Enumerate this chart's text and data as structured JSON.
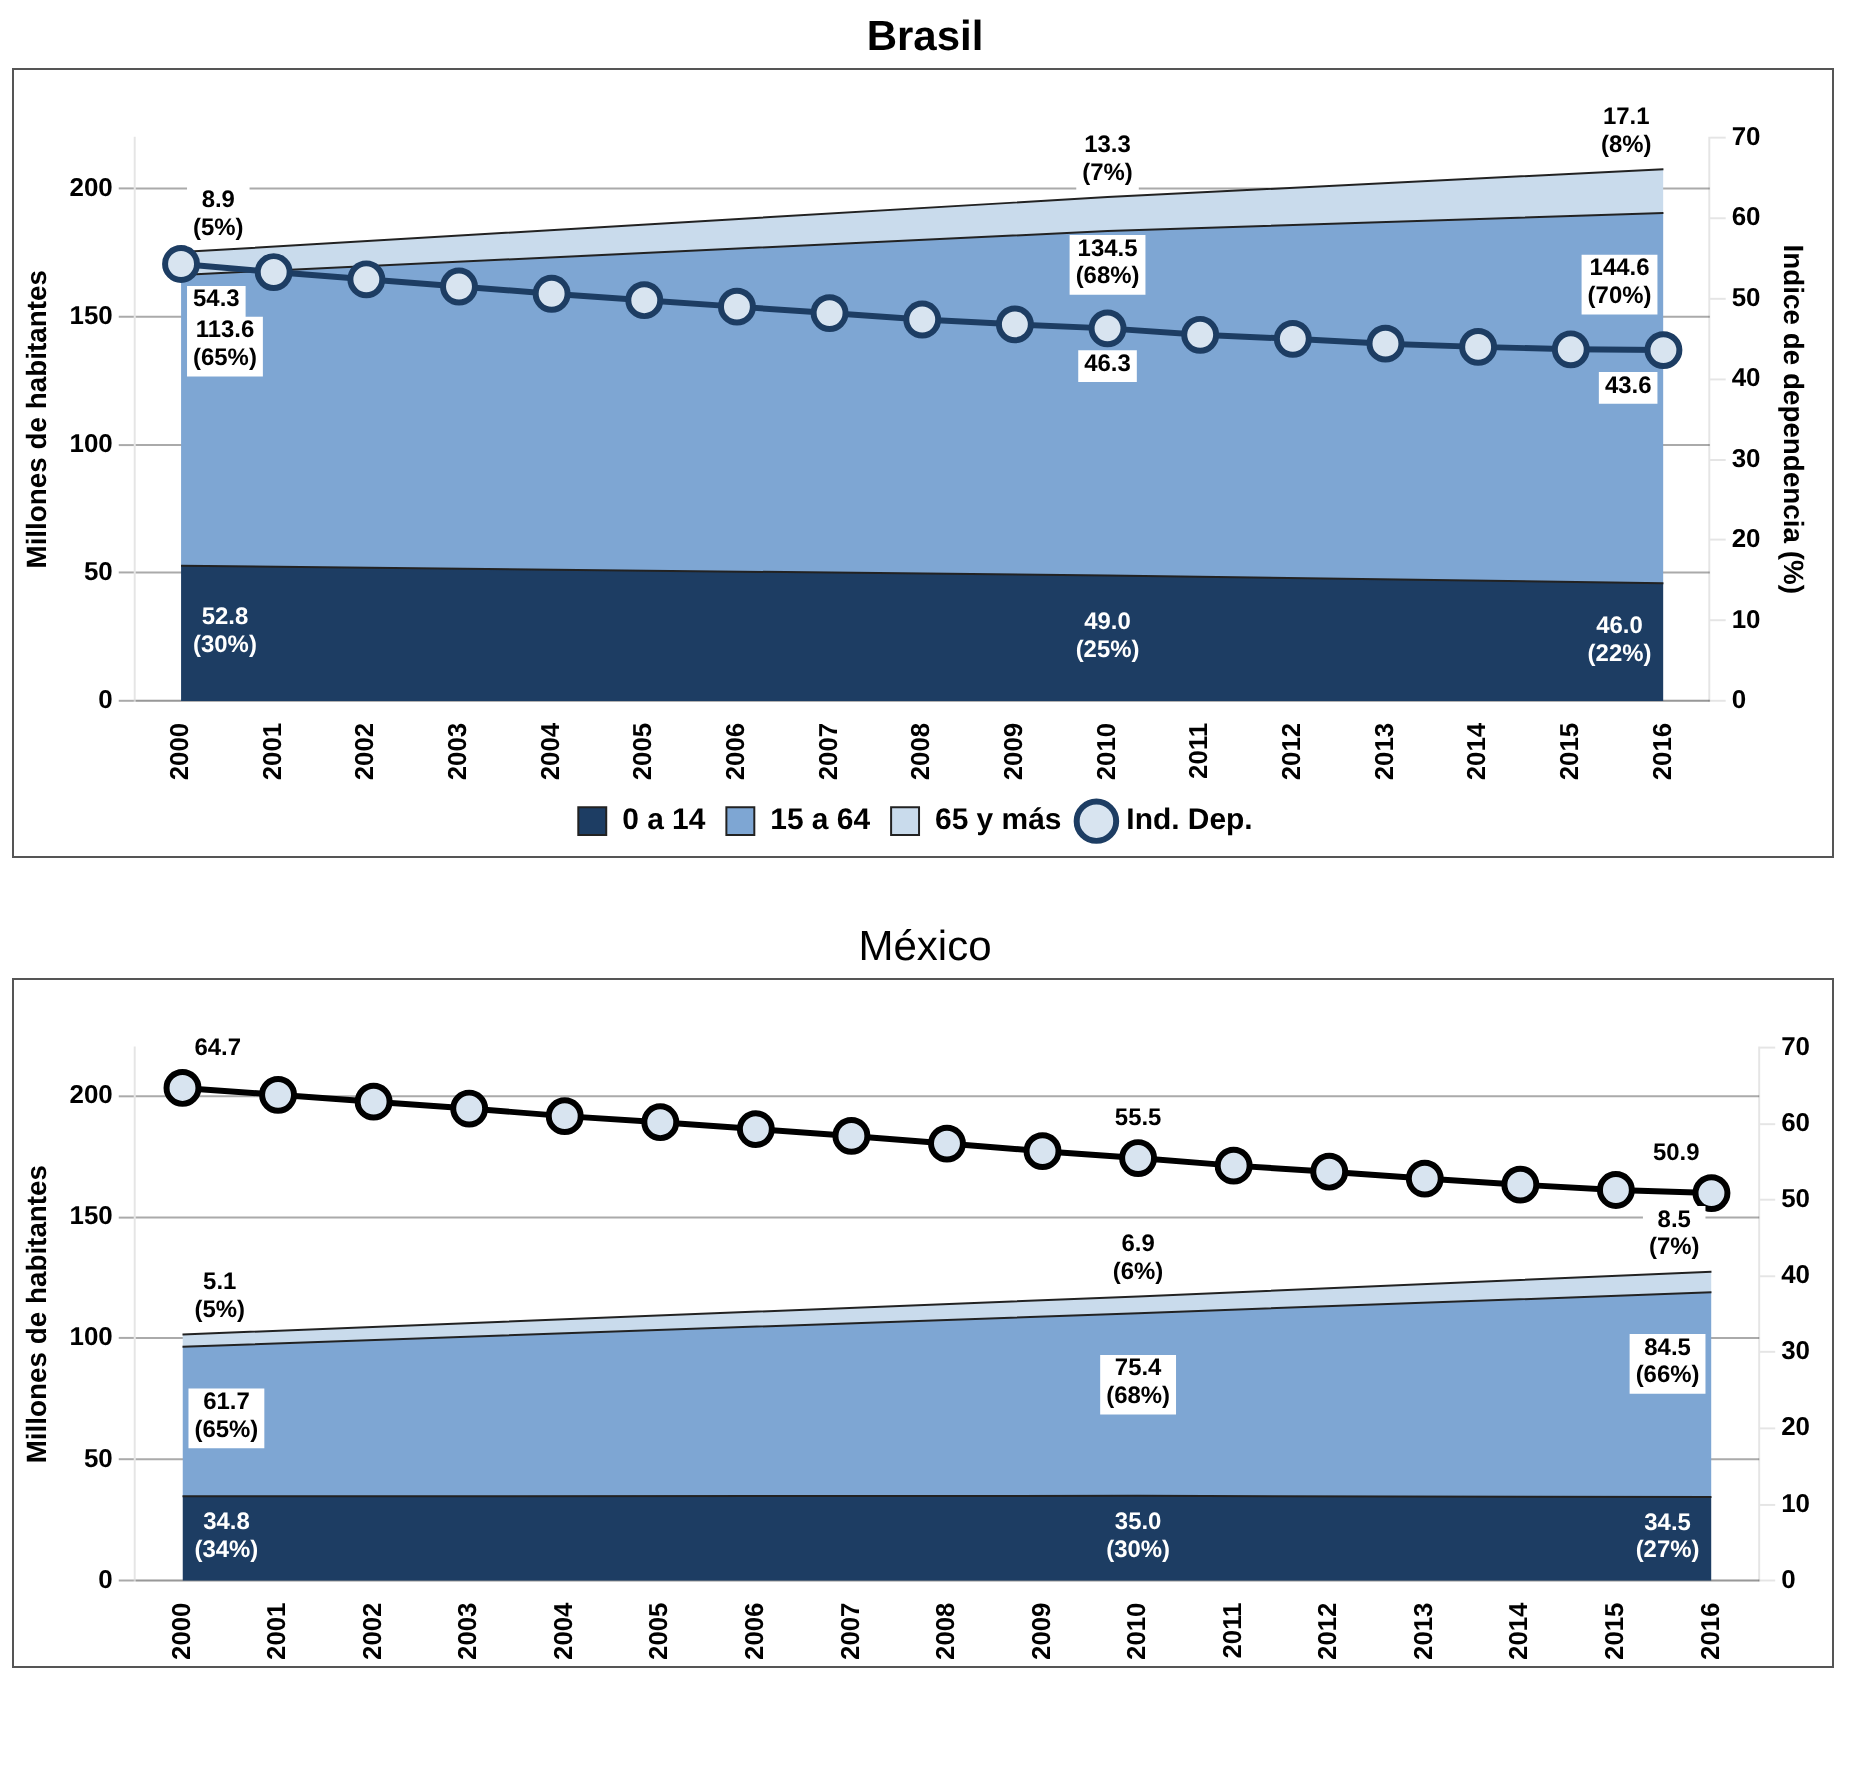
{
  "chart_data": [
    {
      "type": "area",
      "title": "Brasil",
      "ylabel": "Millones de habitantes",
      "y2label": "Indice de dependencia (%)",
      "stacked": true,
      "grid": "y",
      "legend": "bottom",
      "categories": [
        "2000",
        "2001",
        "2002",
        "2003",
        "2004",
        "2005",
        "2006",
        "2007",
        "2008",
        "2009",
        "2010",
        "2011",
        "2012",
        "2013",
        "2014",
        "2015",
        "2016"
      ],
      "ylim": [
        0,
        220
      ],
      "yticks": [
        0,
        50,
        100,
        150,
        200
      ],
      "y2lim": [
        0,
        70
      ],
      "y2ticks": [
        0,
        10,
        20,
        30,
        40,
        50,
        60,
        70
      ],
      "series": [
        {
          "name": "0 a 14",
          "color": "#1d3d63",
          "values": [
            52.8,
            null,
            null,
            null,
            null,
            null,
            null,
            null,
            null,
            null,
            49.0,
            null,
            null,
            null,
            null,
            null,
            46.0
          ],
          "value_labels": [
            "52.8\n(30%)",
            null,
            null,
            null,
            null,
            null,
            null,
            null,
            null,
            null,
            "49.0\n(25%)",
            null,
            null,
            null,
            null,
            null,
            "46.0\n(22%)"
          ]
        },
        {
          "name": "15 a 64",
          "color": "#7ea6d3",
          "values": [
            113.6,
            null,
            null,
            null,
            null,
            null,
            null,
            null,
            null,
            null,
            134.5,
            null,
            null,
            null,
            null,
            null,
            144.6
          ],
          "value_labels": [
            "113.6\n(65%)",
            null,
            null,
            null,
            null,
            null,
            null,
            null,
            null,
            null,
            "134.5\n(68%)",
            null,
            null,
            null,
            null,
            null,
            "144.6\n(70%)"
          ]
        },
        {
          "name": "65 y más",
          "color": "#c9dbec",
          "values": [
            8.9,
            null,
            null,
            null,
            null,
            null,
            null,
            null,
            null,
            null,
            13.3,
            null,
            null,
            null,
            null,
            null,
            17.1
          ],
          "value_labels": [
            "8.9\n(5%)",
            null,
            null,
            null,
            null,
            null,
            null,
            null,
            null,
            null,
            "13.3\n(7%)",
            null,
            null,
            null,
            null,
            null,
            "17.1\n(8%)"
          ]
        },
        {
          "name": "Ind. Dep.",
          "type": "line",
          "axis": "y2",
          "marker": "circle",
          "color": "#1d3d63",
          "values": [
            54.3,
            53.3,
            52.4,
            51.5,
            50.6,
            49.8,
            49.0,
            48.2,
            47.4,
            46.8,
            46.3,
            45.5,
            45.0,
            44.4,
            44.0,
            43.7,
            43.6
          ],
          "value_labels": [
            "54.3",
            null,
            null,
            null,
            null,
            null,
            null,
            null,
            null,
            null,
            "46.3",
            null,
            null,
            null,
            null,
            null,
            "43.6"
          ]
        }
      ]
    },
    {
      "type": "area",
      "title": "México",
      "ylabel": "Millones de habitantes",
      "stacked": true,
      "grid": "y",
      "categories": [
        "2000",
        "2001",
        "2002",
        "2003",
        "2004",
        "2005",
        "2006",
        "2007",
        "2008",
        "2009",
        "2010",
        "2011",
        "2012",
        "2013",
        "2014",
        "2015",
        "2016"
      ],
      "ylim": [
        0,
        220
      ],
      "yticks": [
        0,
        50,
        100,
        150,
        200
      ],
      "y2lim": [
        0,
        70
      ],
      "y2ticks": [
        0,
        10,
        20,
        30,
        40,
        50,
        60,
        70
      ],
      "series": [
        {
          "color": "#1d3d63",
          "values": [
            34.8,
            null,
            null,
            null,
            null,
            null,
            null,
            null,
            null,
            null,
            35.0,
            null,
            null,
            null,
            null,
            null,
            34.5
          ],
          "value_labels": [
            "34.8\n(34%)",
            null,
            null,
            null,
            null,
            null,
            null,
            null,
            null,
            null,
            "35.0\n(30%)",
            null,
            null,
            null,
            null,
            null,
            "34.5\n(27%)"
          ]
        },
        {
          "color": "#7ea6d3",
          "values": [
            61.7,
            null,
            null,
            null,
            null,
            null,
            null,
            null,
            null,
            null,
            75.4,
            null,
            null,
            null,
            null,
            null,
            84.5
          ],
          "value_labels": [
            "61.7\n(65%)",
            null,
            null,
            null,
            null,
            null,
            null,
            null,
            null,
            null,
            "75.4\n(68%)",
            null,
            null,
            null,
            null,
            null,
            "84.5\n(66%)"
          ]
        },
        {
          "color": "#c9dbec",
          "values": [
            5.1,
            null,
            null,
            null,
            null,
            null,
            null,
            null,
            null,
            null,
            6.9,
            null,
            null,
            null,
            null,
            null,
            8.5
          ],
          "value_labels": [
            "5.1\n(5%)",
            null,
            null,
            null,
            null,
            null,
            null,
            null,
            null,
            null,
            "6.9\n(6%)",
            null,
            null,
            null,
            null,
            null,
            "8.5\n(7%)"
          ]
        },
        {
          "type": "line",
          "axis": "y2",
          "marker": "circle",
          "color": "#000000",
          "values": [
            64.7,
            63.8,
            62.9,
            62.0,
            61.0,
            60.2,
            59.3,
            58.4,
            57.4,
            56.4,
            55.5,
            54.5,
            53.7,
            52.8,
            52.0,
            51.3,
            50.9
          ],
          "value_labels": [
            "64.7",
            null,
            null,
            null,
            null,
            null,
            null,
            null,
            null,
            null,
            "55.5",
            null,
            null,
            null,
            null,
            null,
            "50.9"
          ]
        }
      ]
    }
  ]
}
